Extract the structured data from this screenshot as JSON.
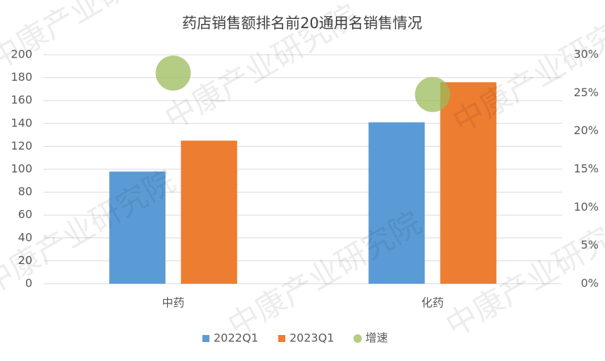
{
  "chart_data": {
    "type": "bar",
    "title": "药店销售额排名前20通用名销售情况",
    "watermark": "中康产业研究院",
    "categories": [
      "中药",
      "化药"
    ],
    "series": [
      {
        "name": "2022Q1",
        "color": "#5b9bd5",
        "values": [
          98,
          141
        ]
      },
      {
        "name": "2023Q1",
        "color": "#ed7d31",
        "values": [
          125,
          176
        ]
      },
      {
        "name": "增速",
        "type": "scatter",
        "axis": "y2",
        "color": "#9bbb59",
        "values": [
          27.6,
          24.8
        ]
      }
    ],
    "ylim": [
      0,
      200
    ],
    "yticks": [
      0,
      20,
      40,
      60,
      80,
      100,
      120,
      140,
      160,
      180,
      200
    ],
    "y2lim": [
      0,
      30
    ],
    "y2ticks": [
      {
        "value": 0,
        "label": "0%"
      },
      {
        "value": 5,
        "label": "5%"
      },
      {
        "value": 10,
        "label": "10%"
      },
      {
        "value": 15,
        "label": "15%"
      },
      {
        "value": 20,
        "label": "20%"
      },
      {
        "value": 25,
        "label": "25%"
      },
      {
        "value": 30,
        "label": "30%"
      }
    ],
    "grid": true,
    "legend": "bottom"
  }
}
